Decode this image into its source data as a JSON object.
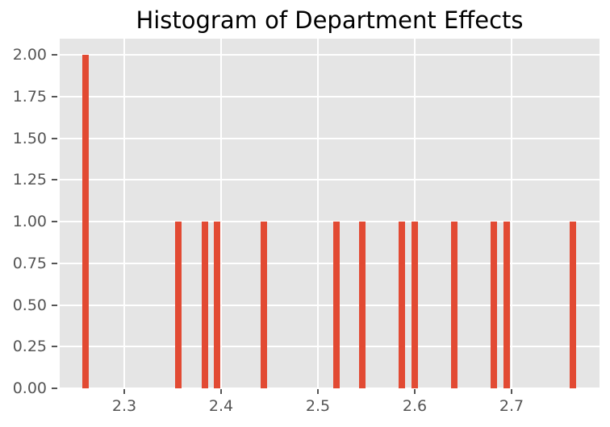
{
  "chart_data": {
    "type": "bar",
    "title": "Histogram of Department Effects",
    "xlabel": "",
    "ylabel": "",
    "x": [
      2.26,
      2.356,
      2.383,
      2.396,
      2.444,
      2.519,
      2.546,
      2.587,
      2.6,
      2.641,
      2.682,
      2.695,
      2.763
    ],
    "counts": [
      2,
      1,
      1,
      1,
      1,
      1,
      1,
      1,
      1,
      1,
      1,
      1,
      1
    ],
    "bar_width": 0.0067,
    "xlim": [
      2.2333,
      2.7908
    ],
    "ylim": [
      0,
      2.097
    ],
    "x_ticks": [
      2.3,
      2.4,
      2.5,
      2.6,
      2.7
    ],
    "x_tick_labels": [
      "2.3",
      "2.4",
      "2.5",
      "2.6",
      "2.7"
    ],
    "y_ticks": [
      0,
      0.25,
      0.5,
      0.75,
      1.0,
      1.25,
      1.5,
      1.75,
      2.0
    ],
    "y_tick_labels": [
      "0.00",
      "0.25",
      "0.50",
      "0.75",
      "1.00",
      "1.25",
      "1.50",
      "1.75",
      "2.00"
    ],
    "grid": true,
    "grid_below_bars": true,
    "legend": false,
    "colors": {
      "bar": "#E24A33",
      "plot_background": "#E5E5E5",
      "gridline": "#FFFFFF",
      "tick_label": "#555555",
      "tick_mark": "#555555",
      "title": "#000000",
      "figure_background": "#FFFFFF"
    }
  }
}
